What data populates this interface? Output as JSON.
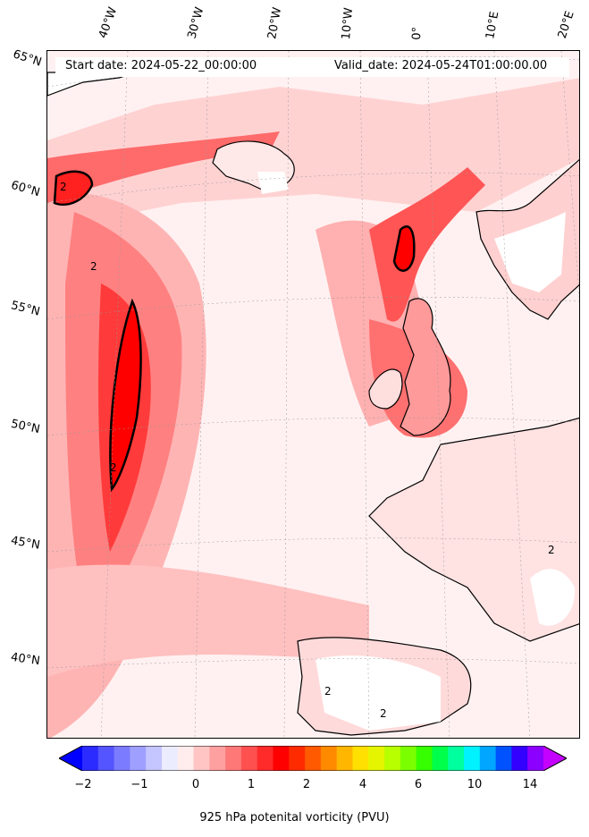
{
  "header": {
    "start_date": "Start date: 2024-05-22_00:00:00",
    "valid_date": "Valid_date: 2024-05-24T01:00:00.00"
  },
  "longitude_labels": [
    "40°W",
    "30°W",
    "20°W",
    "10°W",
    "0°",
    "10°E",
    "20°E"
  ],
  "latitude_labels": [
    "65°N",
    "60°N",
    "55°N",
    "50°N",
    "45°N",
    "40°N"
  ],
  "colorbar": {
    "ticks": [
      "−2",
      "−1",
      "0",
      "1",
      "2",
      "4",
      "6",
      "10",
      "14"
    ],
    "label": "925 hPa potenital vorticity (PVU)",
    "colors": [
      "#0000ff",
      "#2b2bff",
      "#5555ff",
      "#7b7bff",
      "#9f9fff",
      "#c5c5ff",
      "#ececff",
      "#ffecec",
      "#ffc5c5",
      "#ffa0a0",
      "#ff7878",
      "#ff5050",
      "#ff2a2a",
      "#ff0000",
      "#ff2b00",
      "#ff5a00",
      "#ff8a00",
      "#ffb600",
      "#ffe000",
      "#e5f500",
      "#b8ff00",
      "#7bff00",
      "#35ff00",
      "#00ff4a",
      "#00ff9f",
      "#00f2ff",
      "#00a6ff",
      "#0052ff",
      "#3300ff",
      "#8c00ff",
      "#c400ff"
    ]
  },
  "contour_labels": [
    "2",
    "2",
    "2",
    "2",
    "2",
    "2"
  ],
  "colors": {
    "background": "#fff1f1",
    "light_red": "#ffc5c5",
    "mid_red": "#ff7878",
    "strong_red": "#ff1a1a",
    "land_missing": "#ffffff"
  }
}
